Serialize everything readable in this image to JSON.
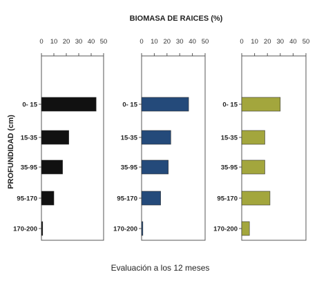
{
  "chart_data": {
    "type": "bar",
    "orientation": "horizontal",
    "title": "BIOMASA DE RAICES (%)",
    "ylabel": "PROFUNDIDAD (cm)",
    "caption": "Evaluación a los 12 meses",
    "categories": [
      "0- 15",
      "15-35",
      "35-95",
      "95-170",
      "170-200"
    ],
    "xlim": [
      0,
      50
    ],
    "xticks": [
      0,
      10,
      20,
      30,
      40,
      50
    ],
    "xaxis_position": "top",
    "grid": false,
    "panels": [
      {
        "color": "#111111",
        "values": [
          44,
          22,
          17,
          10,
          1
        ]
      },
      {
        "color": "#244a7a",
        "values": [
          37,
          23,
          21,
          15,
          1
        ]
      },
      {
        "color": "#a3a63d",
        "values": [
          30,
          18,
          18,
          22,
          6
        ]
      }
    ]
  }
}
